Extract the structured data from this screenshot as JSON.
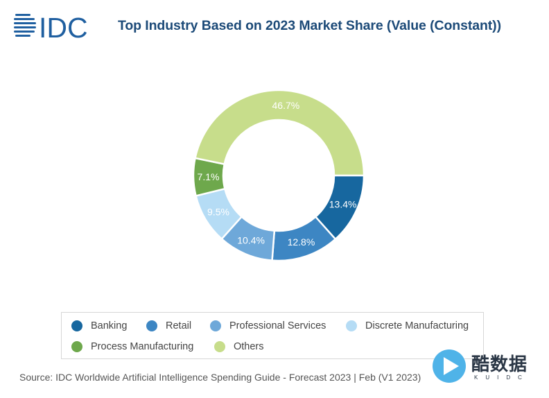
{
  "brand": {
    "logo_text": "IDC"
  },
  "chart_data": {
    "type": "pie",
    "title": "Top Industry Based on 2023 Market Share (Value (Constant))",
    "source": "Source: IDC Worldwide Artificial Intelligence Spending Guide - Forecast 2023 | Feb (V1 2023)",
    "legend_position": "bottom",
    "slices": [
      {
        "label": "Banking",
        "value": 13.4,
        "display": "13.4%",
        "color": "#17679f"
      },
      {
        "label": "Retail",
        "value": 12.8,
        "display": "12.8%",
        "color": "#3d86c3"
      },
      {
        "label": "Professional Services",
        "value": 10.4,
        "display": "10.4%",
        "color": "#6ea8d9"
      },
      {
        "label": "Discrete Manufacturing",
        "value": 9.5,
        "display": "9.5%",
        "color": "#b5dcf5"
      },
      {
        "label": "Process Manufacturing",
        "value": 7.1,
        "display": "7.1%",
        "color": "#6ea84c"
      },
      {
        "label": "Others",
        "value": 46.7,
        "display": "46.7%",
        "color": "#c7dd8b"
      }
    ]
  },
  "watermark": {
    "text": "酷数据",
    "sub": "KUIDC"
  }
}
